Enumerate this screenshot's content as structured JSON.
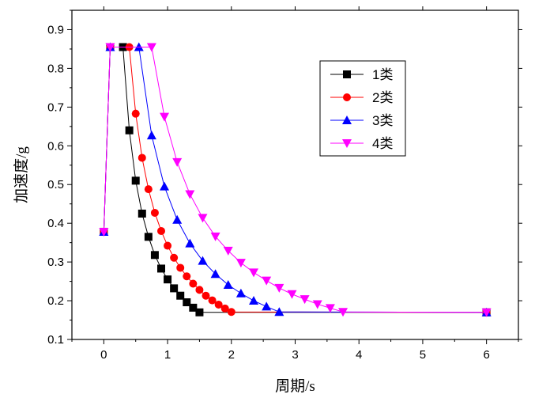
{
  "chart_data": {
    "type": "line",
    "xlabel": "周期/s",
    "ylabel": "加速度/g",
    "xlim": [
      -0.5,
      6.5
    ],
    "ylim": [
      0.1,
      0.95
    ],
    "x_ticks": [
      "0",
      "1",
      "2",
      "3",
      "4",
      "5",
      "6"
    ],
    "y_ticks": [
      "0.1",
      "0.2",
      "0.3",
      "0.4",
      "0.5",
      "0.6",
      "0.7",
      "0.8",
      "0.9"
    ],
    "grid": false,
    "legend_position": "top-right",
    "series": [
      {
        "name": "1类",
        "color": "#000000",
        "marker": "square",
        "x": [
          0,
          0.1,
          0.3,
          0.4,
          0.5,
          0.6,
          0.7,
          0.8,
          0.9,
          1.0,
          1.1,
          1.2,
          1.3,
          1.4,
          1.5,
          6.0
        ],
        "y": [
          0.378,
          0.855,
          0.855,
          0.64,
          0.51,
          0.425,
          0.365,
          0.318,
          0.283,
          0.255,
          0.232,
          0.213,
          0.196,
          0.182,
          0.17,
          0.17
        ]
      },
      {
        "name": "2类",
        "color": "#ff0000",
        "marker": "circle",
        "x": [
          0,
          0.1,
          0.4,
          0.5,
          0.6,
          0.7,
          0.8,
          0.9,
          1.0,
          1.1,
          1.2,
          1.3,
          1.4,
          1.5,
          1.6,
          1.7,
          1.8,
          1.9,
          2.0,
          6.0
        ],
        "y": [
          0.378,
          0.855,
          0.855,
          0.683,
          0.569,
          0.488,
          0.427,
          0.38,
          0.342,
          0.311,
          0.285,
          0.263,
          0.244,
          0.228,
          0.213,
          0.201,
          0.19,
          0.18,
          0.171,
          0.17
        ]
      },
      {
        "name": "3类",
        "color": "#0000ff",
        "marker": "triangle-up",
        "x": [
          0,
          0.1,
          0.55,
          0.75,
          0.95,
          1.15,
          1.35,
          1.55,
          1.75,
          1.95,
          2.15,
          2.35,
          2.55,
          2.75,
          6.0
        ],
        "y": [
          0.378,
          0.855,
          0.855,
          0.627,
          0.495,
          0.409,
          0.348,
          0.303,
          0.269,
          0.241,
          0.219,
          0.2,
          0.185,
          0.171,
          0.17
        ]
      },
      {
        "name": "4类",
        "color": "#ff00ff",
        "marker": "triangle-down",
        "x": [
          0,
          0.1,
          0.75,
          0.95,
          1.15,
          1.35,
          1.55,
          1.75,
          1.95,
          2.15,
          2.35,
          2.55,
          2.75,
          2.95,
          3.15,
          3.35,
          3.55,
          3.75,
          6.0
        ],
        "y": [
          0.378,
          0.855,
          0.855,
          0.675,
          0.558,
          0.475,
          0.414,
          0.366,
          0.329,
          0.298,
          0.273,
          0.252,
          0.233,
          0.217,
          0.204,
          0.191,
          0.181,
          0.171,
          0.17
        ]
      }
    ]
  }
}
